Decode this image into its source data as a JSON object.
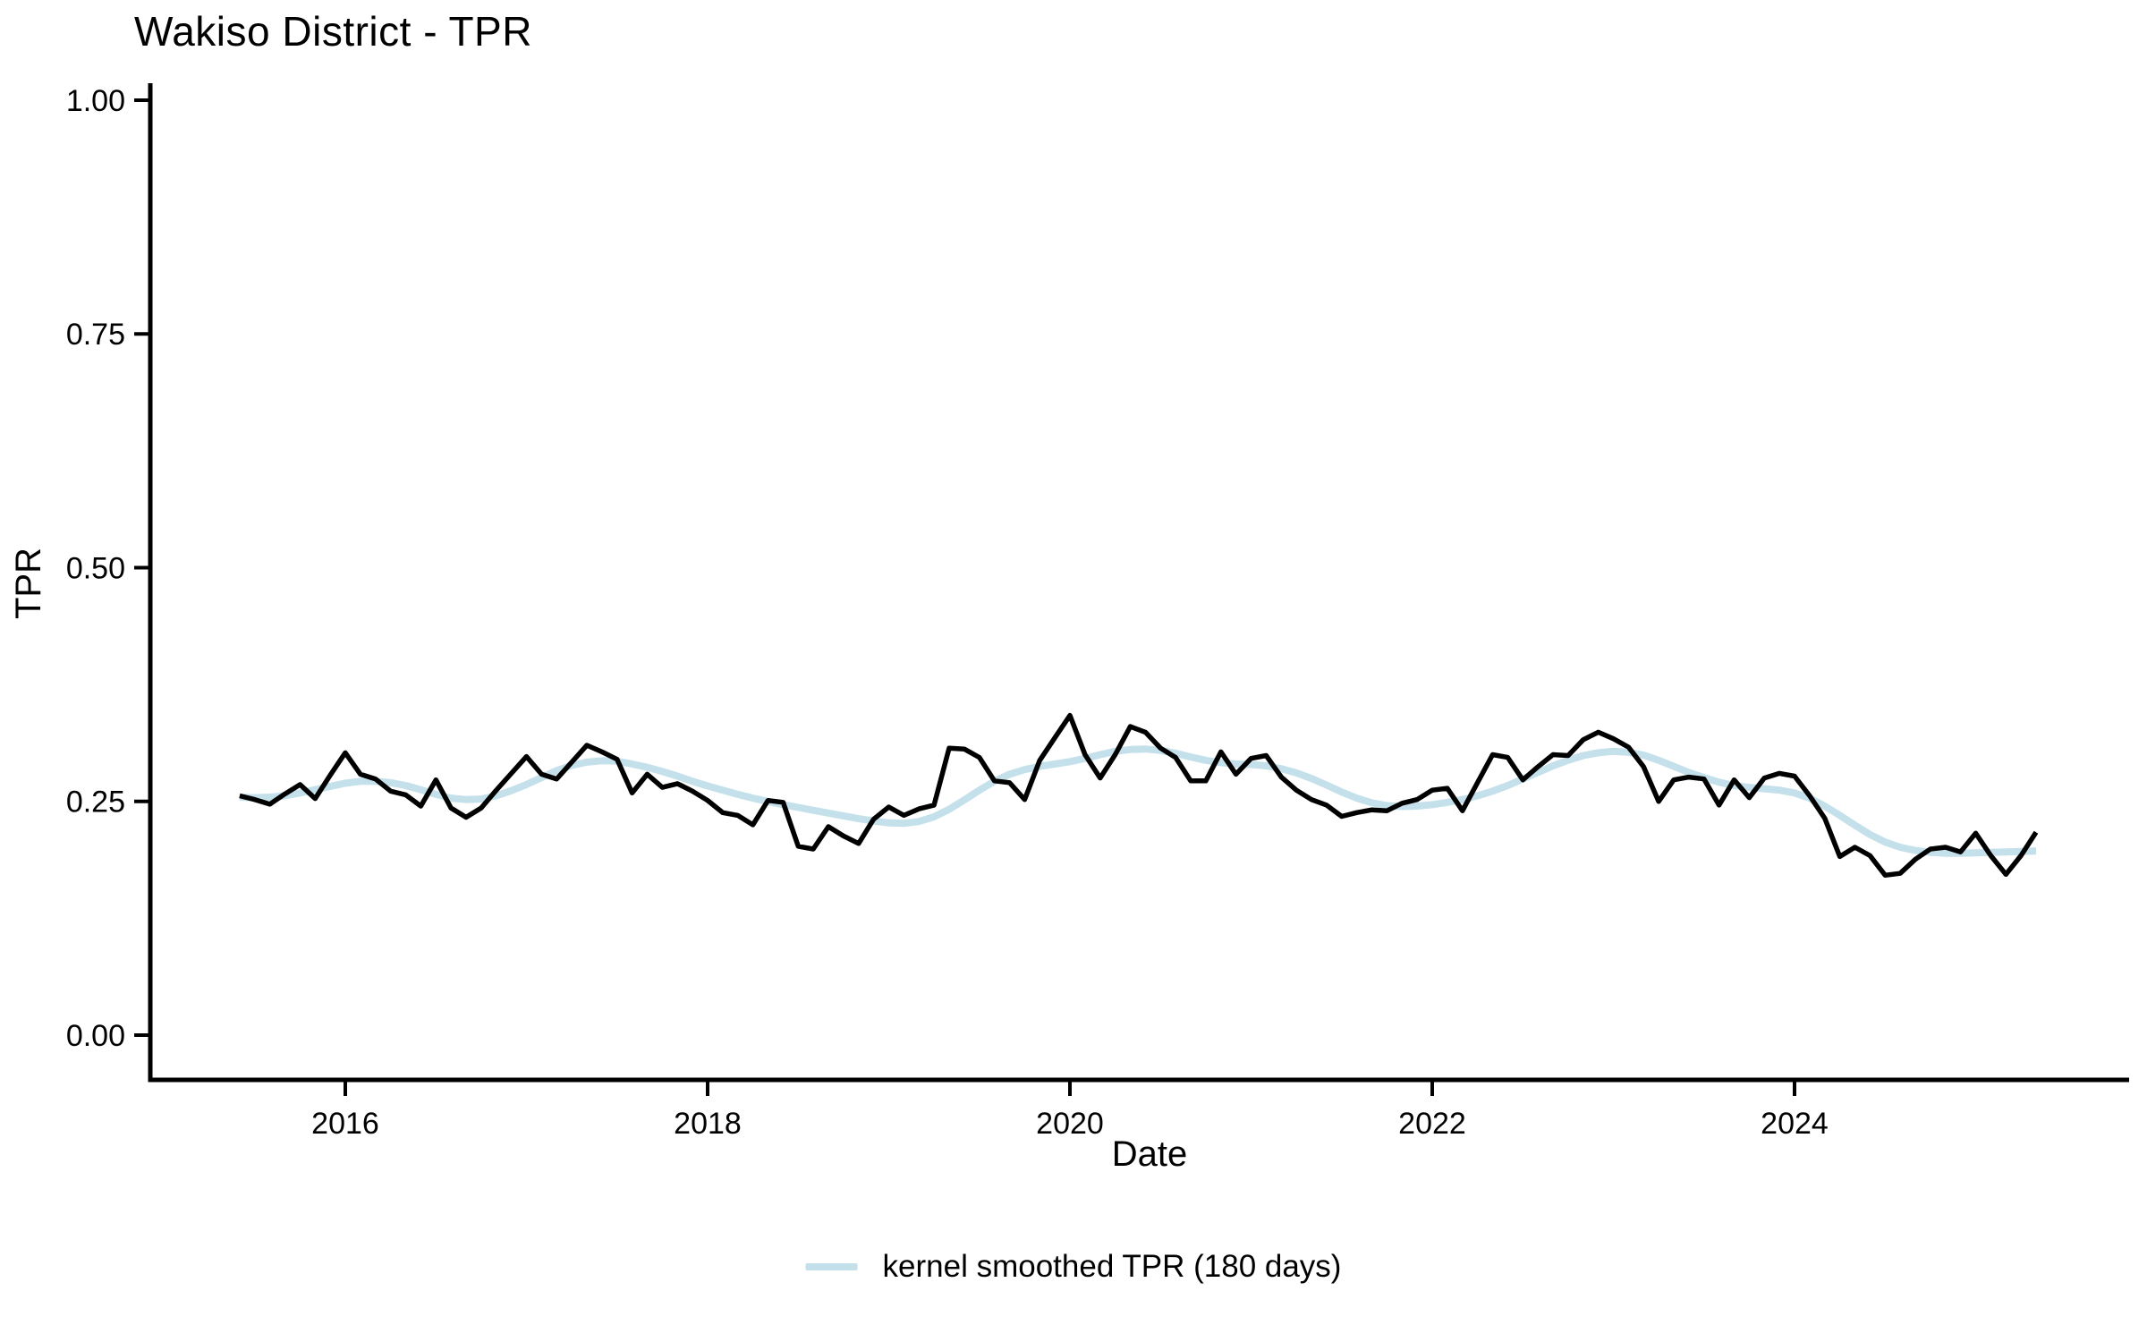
{
  "page": {
    "background": "#ffffff",
    "text_color": "#000000"
  },
  "chart_data": {
    "type": "line",
    "title": "Wakiso District - TPR",
    "xlabel": "Date",
    "ylabel": "TPR",
    "ylim": [
      0,
      1
    ],
    "grid": false,
    "legend_position": "bottom-center",
    "x_start_year": 2015,
    "x_start_month": 6,
    "x_step_months": 1,
    "x_ticks": [
      2016,
      2018,
      2020,
      2022,
      2024
    ],
    "x_tick_labels": [
      "2016",
      "2018",
      "2020",
      "2022",
      "2024"
    ],
    "y_ticks": [
      0,
      0.25,
      0.5,
      0.75,
      1.0
    ],
    "y_tick_labels": [
      "0.00",
      "0.25",
      "0.50",
      "0.75",
      "1.00"
    ],
    "axis_color": "#000000",
    "series": [
      {
        "name": "monthly TPR",
        "color": "#000000",
        "width": 5.5,
        "in_legend": false,
        "values": [
          0.256,
          0.252,
          0.247,
          0.258,
          0.268,
          0.253,
          0.278,
          0.302,
          0.279,
          0.274,
          0.261,
          0.257,
          0.245,
          0.273,
          0.243,
          0.233,
          0.243,
          0.262,
          0.28,
          0.298,
          0.279,
          0.274,
          0.292,
          0.31,
          0.303,
          0.295,
          0.259,
          0.279,
          0.265,
          0.269,
          0.261,
          0.251,
          0.238,
          0.235,
          0.225,
          0.251,
          0.249,
          0.202,
          0.199,
          0.223,
          0.213,
          0.205,
          0.231,
          0.244,
          0.235,
          0.242,
          0.246,
          0.307,
          0.306,
          0.297,
          0.272,
          0.27,
          0.252,
          0.294,
          0.318,
          0.342,
          0.3,
          0.275,
          0.3,
          0.33,
          0.324,
          0.307,
          0.297,
          0.272,
          0.272,
          0.303,
          0.279,
          0.296,
          0.299,
          0.276,
          0.262,
          0.252,
          0.246,
          0.234,
          0.238,
          0.241,
          0.24,
          0.248,
          0.252,
          0.262,
          0.264,
          0.24,
          0.27,
          0.3,
          0.297,
          0.273,
          0.287,
          0.3,
          0.299,
          0.316,
          0.324,
          0.317,
          0.308,
          0.287,
          0.25,
          0.273,
          0.276,
          0.274,
          0.246,
          0.273,
          0.254,
          0.275,
          0.28,
          0.277,
          0.256,
          0.232,
          0.191,
          0.201,
          0.192,
          0.171,
          0.173,
          0.188,
          0.199,
          0.201,
          0.196,
          0.216,
          0.192,
          0.172,
          0.192,
          0.217
        ]
      },
      {
        "name": "kernel smoothed TPR (180 days)",
        "color": "#c4e0eb",
        "width": 8,
        "in_legend": true,
        "values": [
          0.2545,
          0.254,
          0.2545,
          0.256,
          0.259,
          0.2625,
          0.266,
          0.2695,
          0.2715,
          0.2715,
          0.27,
          0.267,
          0.2625,
          0.2575,
          0.2535,
          0.252,
          0.2525,
          0.256,
          0.2615,
          0.268,
          0.2755,
          0.283,
          0.2885,
          0.292,
          0.2935,
          0.293,
          0.29,
          0.2865,
          0.282,
          0.277,
          0.2715,
          0.2665,
          0.262,
          0.2575,
          0.2535,
          0.25,
          0.2465,
          0.2435,
          0.2405,
          0.2375,
          0.2345,
          0.2315,
          0.229,
          0.227,
          0.2265,
          0.2285,
          0.2335,
          0.2415,
          0.2515,
          0.262,
          0.2715,
          0.279,
          0.284,
          0.2875,
          0.29,
          0.2925,
          0.296,
          0.3,
          0.3035,
          0.3055,
          0.306,
          0.3045,
          0.3015,
          0.2975,
          0.294,
          0.2915,
          0.29,
          0.2895,
          0.288,
          0.285,
          0.2805,
          0.2745,
          0.2675,
          0.26,
          0.2535,
          0.2485,
          0.2455,
          0.2445,
          0.245,
          0.2465,
          0.249,
          0.252,
          0.256,
          0.261,
          0.267,
          0.274,
          0.281,
          0.288,
          0.294,
          0.299,
          0.302,
          0.3035,
          0.3025,
          0.2995,
          0.294,
          0.2875,
          0.281,
          0.2755,
          0.2705,
          0.267,
          0.265,
          0.2635,
          0.262,
          0.259,
          0.2535,
          0.245,
          0.235,
          0.2245,
          0.2145,
          0.2065,
          0.201,
          0.1975,
          0.1955,
          0.1945,
          0.1945,
          0.195,
          0.1955,
          0.196,
          0.1965,
          0.197
        ]
      }
    ],
    "legend": {
      "label": "kernel smoothed TPR (180 days)",
      "key_color": "#c4e0eb"
    }
  }
}
